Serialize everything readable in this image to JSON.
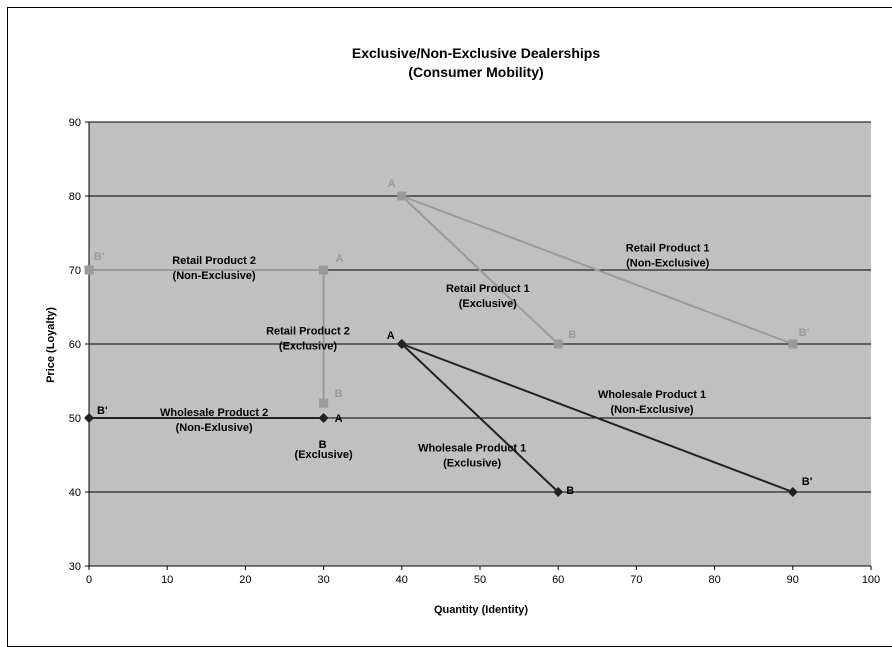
{
  "chart_data": {
    "type": "line",
    "title": "Exclusive/Non-Exclusive Dealerships",
    "subtitle": "(Consumer Mobility)",
    "xlabel": "Quantity (Identity)",
    "ylabel": "Price (Loyalty)",
    "xlim": [
      0,
      100
    ],
    "ylim": [
      30,
      90
    ],
    "xticks": [
      0,
      10,
      20,
      30,
      40,
      50,
      60,
      70,
      80,
      90,
      100
    ],
    "yticks": [
      30,
      40,
      50,
      60,
      70,
      80,
      90
    ],
    "grid": "horizontal",
    "legend": "none",
    "colors": {
      "plot_bg": "#c0c0c0",
      "retail": "#9a9a9a",
      "wholesale": "#222222",
      "grid": "#000000"
    },
    "series": [
      {
        "key": "r1n",
        "group": "retail",
        "marker": "square",
        "points": [
          [
            40,
            80
          ],
          [
            90,
            60
          ]
        ]
      },
      {
        "key": "r1e",
        "group": "retail",
        "marker": "square",
        "points": [
          [
            40,
            80
          ],
          [
            60,
            60
          ]
        ]
      },
      {
        "key": "r2n",
        "group": "retail",
        "marker": "square",
        "points": [
          [
            0,
            70
          ],
          [
            30,
            70
          ]
        ]
      },
      {
        "key": "r2e",
        "group": "retail",
        "marker": "square",
        "points": [
          [
            30,
            70
          ],
          [
            30,
            52
          ]
        ]
      },
      {
        "key": "w1n",
        "group": "wholesale",
        "marker": "diamond",
        "points": [
          [
            40,
            60
          ],
          [
            90,
            40
          ]
        ]
      },
      {
        "key": "w1e",
        "group": "wholesale",
        "marker": "diamond",
        "points": [
          [
            40,
            60
          ],
          [
            60,
            40
          ]
        ]
      },
      {
        "key": "w2n",
        "group": "wholesale",
        "marker": "diamond",
        "points": [
          [
            0,
            50
          ],
          [
            30,
            50
          ]
        ]
      }
    ],
    "point_labels": [
      {
        "text": "A",
        "x": 40,
        "y": 80,
        "group": "retail"
      },
      {
        "text": "B'",
        "x": 90,
        "y": 60,
        "group": "retail"
      },
      {
        "text": "B",
        "x": 60,
        "y": 60,
        "group": "retail"
      },
      {
        "text": "B'",
        "x": 0,
        "y": 70,
        "group": "retail"
      },
      {
        "text": "A",
        "x": 30,
        "y": 70,
        "group": "retail"
      },
      {
        "text": "B",
        "x": 30,
        "y": 52,
        "group": "retail"
      },
      {
        "text": "A",
        "x": 40,
        "y": 60,
        "group": "wholesale"
      },
      {
        "text": "B",
        "x": 60,
        "y": 40,
        "group": "wholesale"
      },
      {
        "text": "B'",
        "x": 90,
        "y": 40,
        "group": "wholesale"
      },
      {
        "text": "B'",
        "x": 0,
        "y": 50,
        "group": "wholesale"
      },
      {
        "text": "A",
        "x": 30,
        "y": 50,
        "group": "wholesale"
      },
      {
        "text": "B",
        "x": 30,
        "y": 47,
        "group": "wholesale"
      }
    ],
    "annotations": [
      {
        "lines": [
          "Retail Product 1",
          "(Non-Exclusive)"
        ],
        "x": 74,
        "y": 72.5
      },
      {
        "lines": [
          "Retail Product 1",
          "(Exclusive)"
        ],
        "x": 51,
        "y": 67
      },
      {
        "lines": [
          "Retail  Product 2",
          "(Non-Exclusive)"
        ],
        "x": 16,
        "y": 70.8
      },
      {
        "lines": [
          "Retail Product 2",
          "(Exclusive)"
        ],
        "x": 28,
        "y": 61.3
      },
      {
        "lines": [
          "Wholesale Product 1",
          "(Non-Exclusive)"
        ],
        "x": 72,
        "y": 52.7
      },
      {
        "lines": [
          "Wholesale Product 1",
          "(Exclusive)"
        ],
        "x": 49,
        "y": 45.5
      },
      {
        "lines": [
          "Wholesale Product 2",
          "(Non-Exlusive)"
        ],
        "x": 16,
        "y": 50.3
      },
      {
        "lines": [
          "(Exclusive)"
        ],
        "x": 30,
        "y": 44.6
      }
    ]
  }
}
